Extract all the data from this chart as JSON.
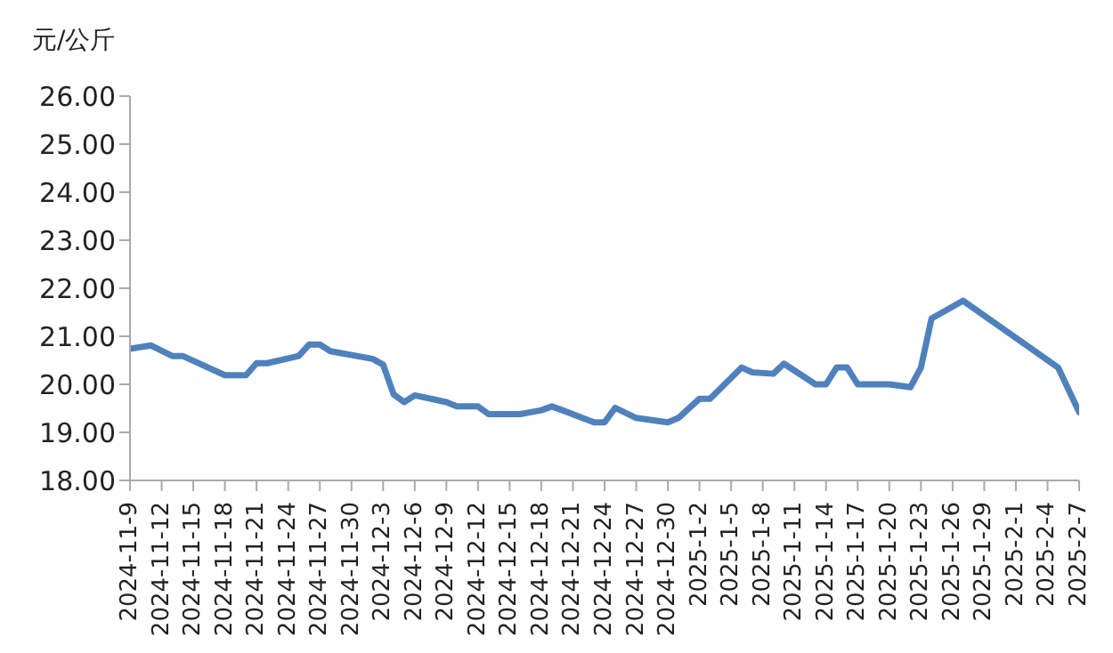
{
  "chart_data": {
    "type": "line",
    "ylabel": "元/公斤",
    "x": [
      "2024-11-09",
      "2024-11-11",
      "2024-11-13",
      "2024-11-14",
      "2024-11-18",
      "2024-11-20",
      "2024-11-21",
      "2024-11-22",
      "2024-11-25",
      "2024-11-26",
      "2024-11-27",
      "2024-11-28",
      "2024-12-02",
      "2024-12-03",
      "2024-12-04",
      "2024-12-05",
      "2024-12-06",
      "2024-12-09",
      "2024-12-10",
      "2024-12-12",
      "2024-12-13",
      "2024-12-16",
      "2024-12-18",
      "2024-12-19",
      "2024-12-20",
      "2024-12-23",
      "2024-12-24",
      "2024-12-25",
      "2024-12-27",
      "2024-12-30",
      "2024-12-31",
      "2025-01-02",
      "2025-01-03",
      "2025-01-06",
      "2025-01-07",
      "2025-01-09",
      "2025-01-10",
      "2025-01-13",
      "2025-01-14",
      "2025-01-15",
      "2025-01-16",
      "2025-01-17",
      "2025-01-20",
      "2025-01-22",
      "2025-01-23",
      "2025-01-24",
      "2025-01-27",
      "2025-02-05",
      "2025-02-07"
    ],
    "series": [
      {
        "color": "#4f81bd",
        "values": [
          20.74,
          20.81,
          20.59,
          20.59,
          20.19,
          20.19,
          20.44,
          20.44,
          20.59,
          20.83,
          20.83,
          20.69,
          20.53,
          20.41,
          19.79,
          19.63,
          19.77,
          19.63,
          19.54,
          19.54,
          19.38,
          19.38,
          19.46,
          19.54,
          19.46,
          19.21,
          19.21,
          19.51,
          19.3,
          19.21,
          19.3,
          19.7,
          19.7,
          20.35,
          20.25,
          20.22,
          20.43,
          20.0,
          20.0,
          20.35,
          20.35,
          20.0,
          20.0,
          19.94,
          20.35,
          21.37,
          21.74,
          20.35,
          19.42
        ]
      }
    ],
    "xlim": [
      "2024-11-09",
      "2025-02-07"
    ],
    "xticks": [
      {
        "value": "2024-11-09",
        "label": "2024-11-9"
      },
      {
        "value": "2024-11-12",
        "label": "2024-11-12"
      },
      {
        "value": "2024-11-15",
        "label": "2024-11-15"
      },
      {
        "value": "2024-11-18",
        "label": "2024-11-18"
      },
      {
        "value": "2024-11-21",
        "label": "2024-11-21"
      },
      {
        "value": "2024-11-24",
        "label": "2024-11-24"
      },
      {
        "value": "2024-11-27",
        "label": "2024-11-27"
      },
      {
        "value": "2024-11-30",
        "label": "2024-11-30"
      },
      {
        "value": "2024-12-03",
        "label": "2024-12-3"
      },
      {
        "value": "2024-12-06",
        "label": "2024-12-6"
      },
      {
        "value": "2024-12-09",
        "label": "2024-12-9"
      },
      {
        "value": "2024-12-12",
        "label": "2024-12-12"
      },
      {
        "value": "2024-12-15",
        "label": "2024-12-15"
      },
      {
        "value": "2024-12-18",
        "label": "2024-12-18"
      },
      {
        "value": "2024-12-21",
        "label": "2024-12-21"
      },
      {
        "value": "2024-12-24",
        "label": "2024-12-24"
      },
      {
        "value": "2024-12-27",
        "label": "2024-12-27"
      },
      {
        "value": "2024-12-30",
        "label": "2024-12-30"
      },
      {
        "value": "2025-01-02",
        "label": "2025-1-2"
      },
      {
        "value": "2025-01-05",
        "label": "2025-1-5"
      },
      {
        "value": "2025-01-08",
        "label": "2025-1-8"
      },
      {
        "value": "2025-01-11",
        "label": "2025-1-11"
      },
      {
        "value": "2025-01-14",
        "label": "2025-1-14"
      },
      {
        "value": "2025-01-17",
        "label": "2025-1-17"
      },
      {
        "value": "2025-01-20",
        "label": "2025-1-20"
      },
      {
        "value": "2025-01-23",
        "label": "2025-1-23"
      },
      {
        "value": "2025-01-26",
        "label": "2025-1-26"
      },
      {
        "value": "2025-01-29",
        "label": "2025-1-29"
      },
      {
        "value": "2025-02-01",
        "label": "2025-2-1"
      },
      {
        "value": "2025-02-04",
        "label": "2025-2-4"
      },
      {
        "value": "2025-02-07",
        "label": "2025-2-7"
      }
    ],
    "ylim": [
      18,
      26
    ],
    "yticks": [
      {
        "value": 18,
        "label": "18.00"
      },
      {
        "value": 19,
        "label": "19.00"
      },
      {
        "value": 20,
        "label": "20.00"
      },
      {
        "value": 21,
        "label": "21.00"
      },
      {
        "value": 22,
        "label": "22.00"
      },
      {
        "value": 23,
        "label": "23.00"
      },
      {
        "value": 24,
        "label": "24.00"
      },
      {
        "value": 25,
        "label": "25.00"
      },
      {
        "value": 26,
        "label": "26.00"
      }
    ],
    "grid": false,
    "legend": false
  }
}
